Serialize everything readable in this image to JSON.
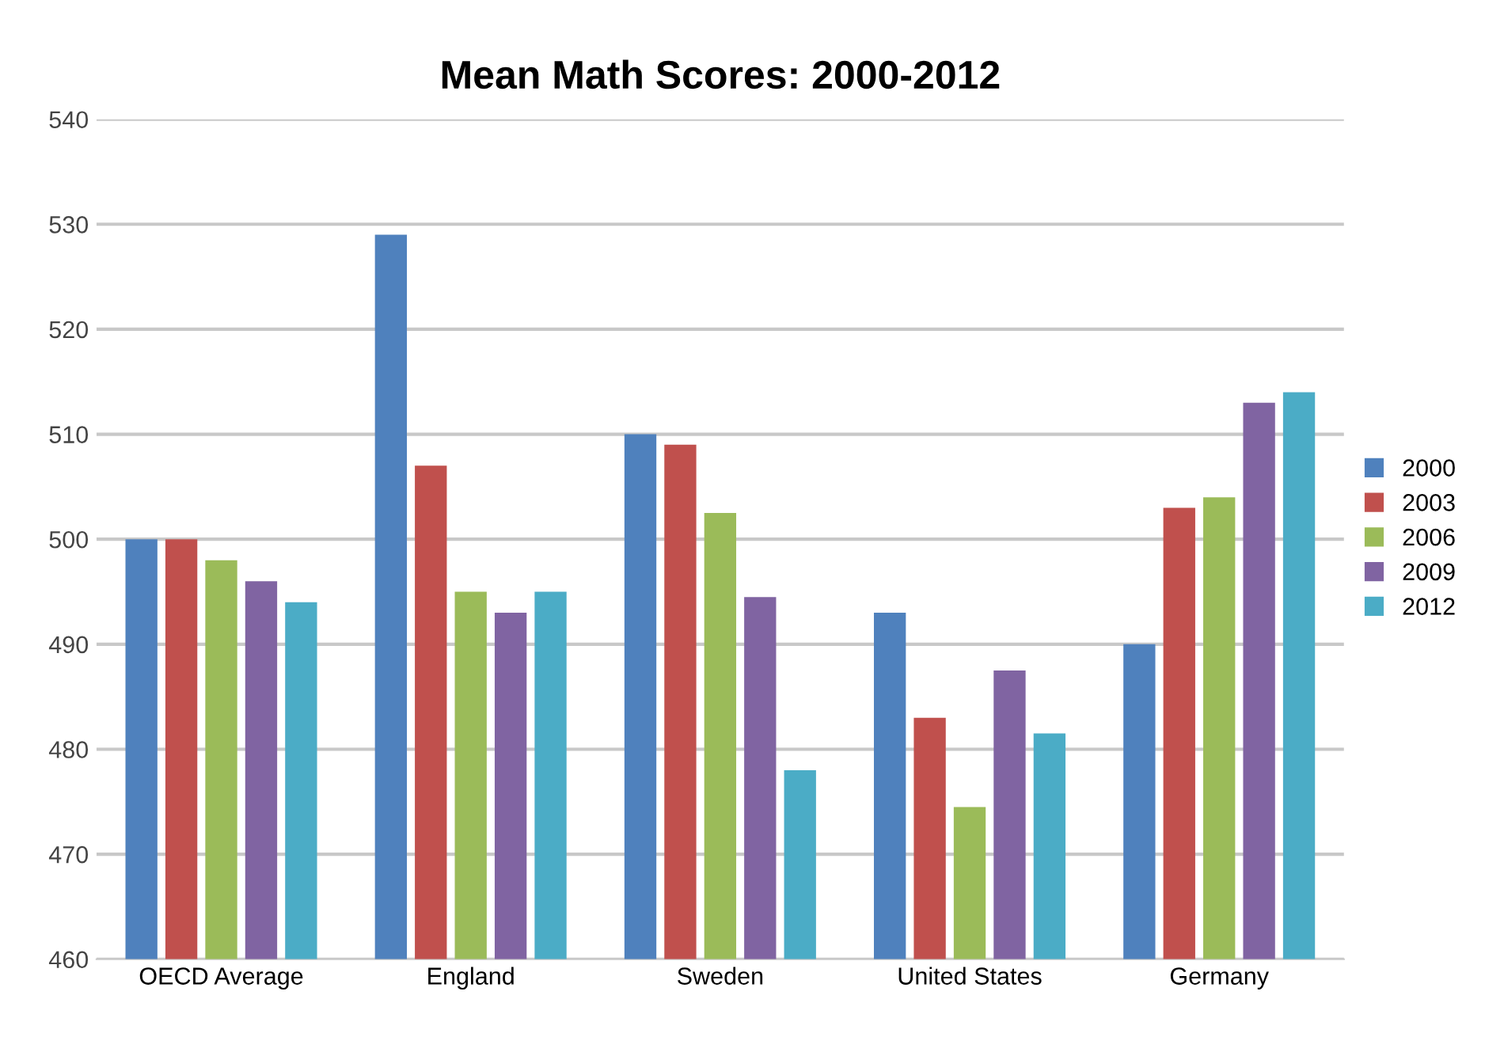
{
  "chart_data": {
    "type": "bar",
    "title": "Mean Math Scores: 2000-2012",
    "categories": [
      "OECD Average",
      "England",
      "Sweden",
      "United States",
      "Germany"
    ],
    "series": [
      {
        "name": "2000",
        "color": "#4f81bd",
        "values": [
          500,
          529,
          510,
          493,
          490
        ]
      },
      {
        "name": "2003",
        "color": "#c0504d",
        "values": [
          500,
          507,
          509,
          483,
          503
        ]
      },
      {
        "name": "2006",
        "color": "#9bbb59",
        "values": [
          498,
          495,
          502.5,
          474.5,
          504
        ]
      },
      {
        "name": "2009",
        "color": "#8064a2",
        "values": [
          496,
          493,
          494.5,
          487.5,
          513
        ]
      },
      {
        "name": "2012",
        "color": "#4bacc6",
        "values": [
          494,
          495,
          478,
          481.5,
          514
        ]
      }
    ],
    "ylim": [
      460,
      540
    ],
    "yticks": [
      460,
      470,
      480,
      490,
      500,
      510,
      520,
      530,
      540
    ],
    "grid": "y",
    "legend": "right"
  }
}
